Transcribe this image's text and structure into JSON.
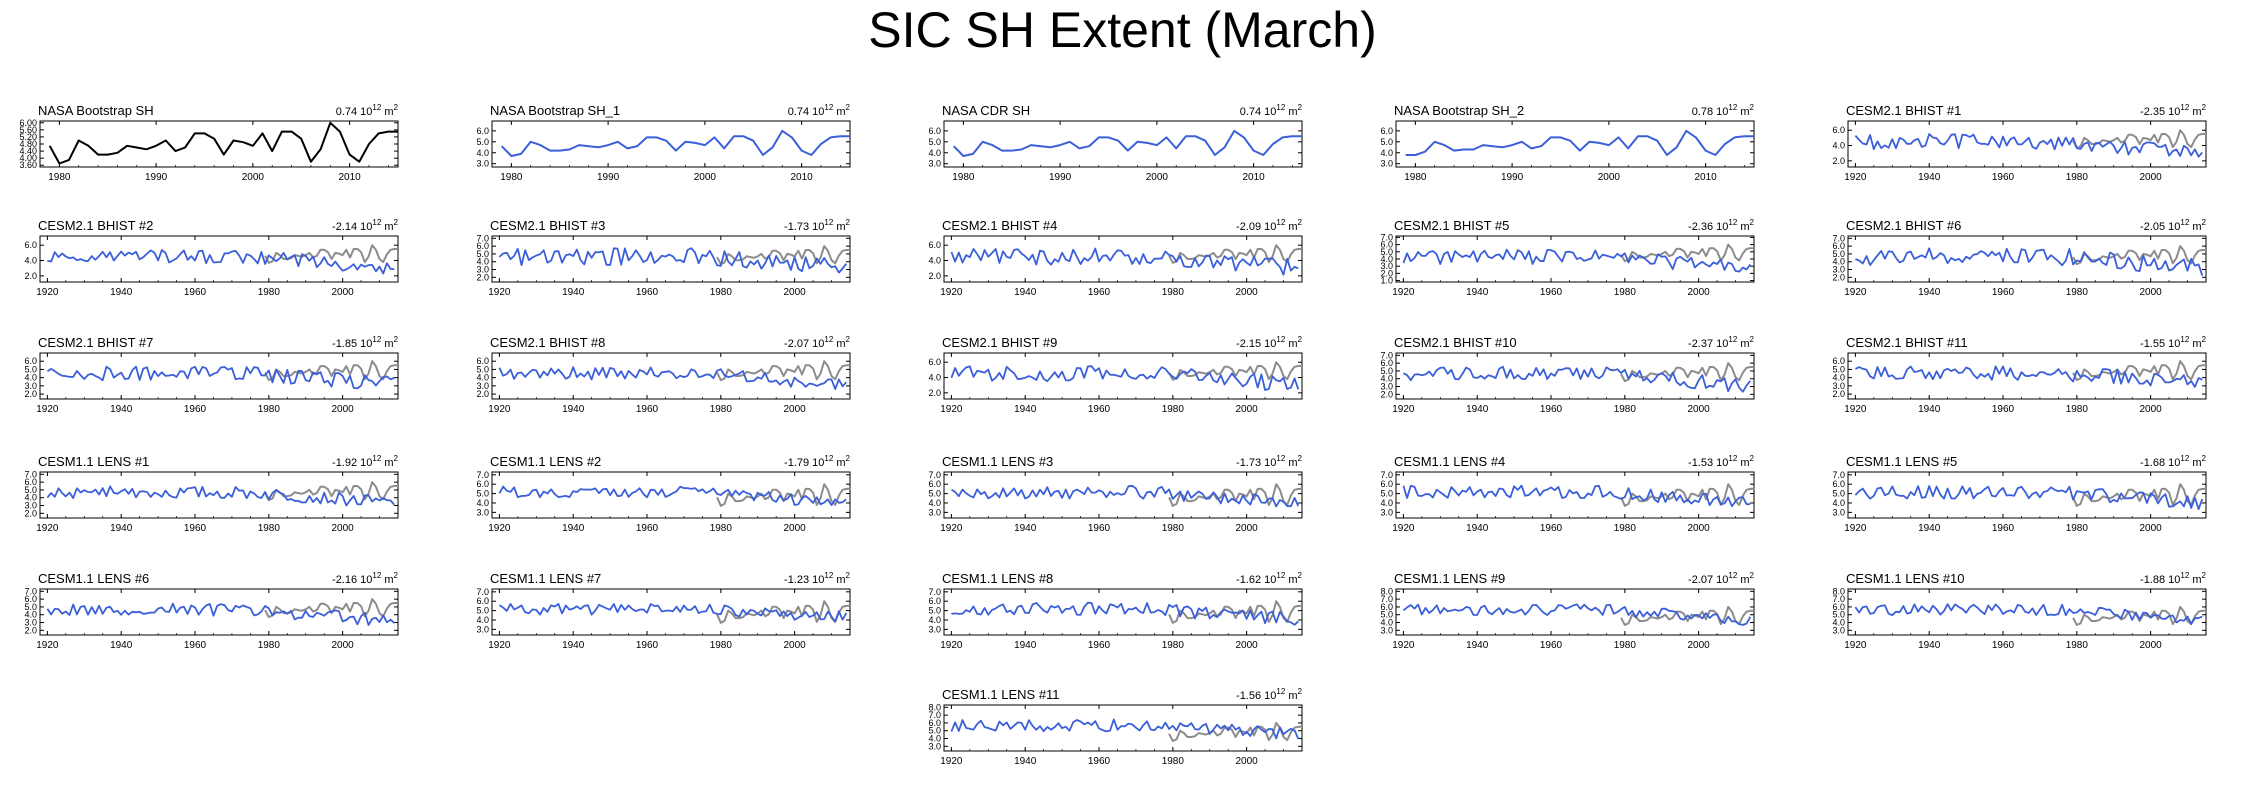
{
  "title": "SIC SH Extent (March)",
  "colors": {
    "observed": "#000000",
    "model": "#3a5fd9",
    "reference": "#8c8c8c"
  },
  "units": {
    "base": "10",
    "exp": "12",
    "unit": "m",
    "unit_exp": "2"
  },
  "chart_data": [
    {
      "type": "line",
      "title": "NASA Bootstrap SH",
      "trend": "0.74",
      "style": "obs",
      "xlim": [
        1978,
        2015
      ],
      "xticks": [
        1980,
        1990,
        2000,
        2010
      ],
      "ylim": [
        3.5,
        6.1
      ],
      "yticks": [
        "6.00",
        "5.60",
        "5.20",
        "4.80",
        "4.40",
        "4.00",
        "3.60"
      ],
      "ytick_values": [
        6.0,
        5.6,
        5.2,
        4.8,
        4.4,
        4.0,
        3.6
      ],
      "series": [
        {
          "x_start": 1979,
          "values": [
            4.7,
            3.7,
            3.9,
            5.0,
            4.7,
            4.2,
            4.2,
            4.3,
            4.7,
            4.6,
            4.5,
            4.7,
            5.0,
            4.4,
            4.6,
            5.4,
            5.4,
            5.1,
            4.2,
            5.0,
            4.9,
            4.7,
            5.4,
            4.4,
            5.5,
            5.5,
            5.1,
            3.8,
            4.5,
            6.0,
            5.5,
            4.2,
            3.8,
            4.8,
            5.4,
            5.5,
            5.5
          ]
        }
      ]
    },
    {
      "type": "line",
      "title": "NASA Bootstrap SH_1",
      "trend": "0.74",
      "style": "obs1",
      "xlim": [
        1978,
        2015
      ],
      "xticks": [
        1980,
        1990,
        2000,
        2010
      ],
      "ylim": [
        2.7,
        6.9
      ],
      "yticks": [
        "6.0",
        "5.0",
        "4.0",
        "3.0"
      ],
      "ytick_values": [
        6.0,
        5.0,
        4.0,
        3.0
      ],
      "series": [
        {
          "x_start": 1979,
          "values": [
            4.6,
            3.7,
            3.9,
            5.0,
            4.7,
            4.2,
            4.2,
            4.3,
            4.7,
            4.6,
            4.5,
            4.7,
            5.0,
            4.4,
            4.6,
            5.4,
            5.4,
            5.1,
            4.2,
            5.0,
            4.9,
            4.7,
            5.4,
            4.4,
            5.5,
            5.5,
            5.1,
            3.8,
            4.5,
            6.0,
            5.4,
            4.2,
            3.8,
            4.8,
            5.4,
            5.5,
            5.5
          ]
        }
      ]
    },
    {
      "type": "line",
      "title": "NASA CDR SH",
      "trend": "0.74",
      "style": "obs1",
      "xlim": [
        1978,
        2015
      ],
      "xticks": [
        1980,
        1990,
        2000,
        2010
      ],
      "ylim": [
        2.7,
        6.9
      ],
      "yticks": [
        "6.0",
        "5.0",
        "4.0",
        "3.0"
      ],
      "ytick_values": [
        6.0,
        5.0,
        4.0,
        3.0
      ],
      "series": [
        {
          "x_start": 1979,
          "values": [
            4.6,
            3.7,
            3.9,
            5.0,
            4.7,
            4.2,
            4.2,
            4.3,
            4.7,
            4.6,
            4.5,
            4.7,
            5.0,
            4.4,
            4.6,
            5.4,
            5.4,
            5.1,
            4.2,
            5.0,
            4.9,
            4.7,
            5.4,
            4.4,
            5.5,
            5.5,
            5.1,
            3.8,
            4.5,
            6.0,
            5.4,
            4.2,
            3.8,
            4.8,
            5.4,
            5.5,
            5.5
          ]
        }
      ]
    },
    {
      "type": "line",
      "title": "NASA Bootstrap SH_2",
      "trend": "0.78",
      "style": "obs1",
      "xlim": [
        1978,
        2015
      ],
      "xticks": [
        1980,
        1990,
        2000,
        2010
      ],
      "ylim": [
        2.7,
        6.9
      ],
      "yticks": [
        "6.0",
        "5.0",
        "4.0",
        "3.0"
      ],
      "ytick_values": [
        6.0,
        5.0,
        4.0,
        3.0
      ],
      "series": [
        {
          "x_start": 1979,
          "values": [
            3.8,
            3.8,
            4.1,
            5.0,
            4.7,
            4.2,
            4.3,
            4.3,
            4.7,
            4.6,
            4.5,
            4.7,
            5.0,
            4.4,
            4.6,
            5.4,
            5.4,
            5.1,
            4.2,
            5.0,
            4.9,
            4.7,
            5.4,
            4.4,
            5.5,
            5.5,
            5.1,
            3.8,
            4.5,
            6.0,
            5.4,
            4.2,
            3.8,
            4.8,
            5.4,
            5.5,
            5.5
          ]
        }
      ]
    },
    {
      "type": "line",
      "title": "CESM2.1 BHIST #1",
      "trend": "-2.35",
      "style": "model",
      "amp": 1.0,
      "xlim": [
        1918,
        2015
      ],
      "xticks": [
        1920,
        1940,
        1960,
        1980,
        2000
      ],
      "ylim": [
        1.2,
        7.2
      ],
      "yticks": [
        "6.0",
        "4.0",
        "2.0"
      ],
      "ytick_values": [
        6.0,
        4.0,
        2.0
      ],
      "series": [
        {
          "x_start": 1920,
          "values": []
        }
      ]
    },
    {
      "type": "line",
      "title": "CESM2.1 BHIST #2",
      "trend": "-2.14",
      "style": "model",
      "amp": 0.9,
      "xlim": [
        1918,
        2015
      ],
      "xticks": [
        1920,
        1940,
        1960,
        1980,
        2000
      ],
      "ylim": [
        1.2,
        7.2
      ],
      "yticks": [
        "6.0",
        "4.0",
        "2.0"
      ],
      "ytick_values": [
        6.0,
        4.0,
        2.0
      ],
      "series": [
        {
          "x_start": 1920,
          "values": []
        }
      ]
    },
    {
      "type": "line",
      "title": "CESM2.1 BHIST #3",
      "trend": "-1.73",
      "style": "model",
      "amp": 1.1,
      "xlim": [
        1918,
        2015
      ],
      "xticks": [
        1920,
        1940,
        1960,
        1980,
        2000
      ],
      "ylim": [
        1.4,
        7.3
      ],
      "yticks": [
        "7.0",
        "6.0",
        "5.0",
        "4.0",
        "3.0",
        "2.0"
      ],
      "ytick_values": [
        7.0,
        6.0,
        5.0,
        4.0,
        3.0,
        2.0
      ],
      "series": [
        {
          "x_start": 1920,
          "values": []
        }
      ]
    },
    {
      "type": "line",
      "title": "CESM2.1 BHIST #4",
      "trend": "-2.09",
      "style": "model",
      "amp": 1.1,
      "xlim": [
        1918,
        2015
      ],
      "xticks": [
        1920,
        1940,
        1960,
        1980,
        2000
      ],
      "ylim": [
        1.2,
        7.2
      ],
      "yticks": [
        "6.0",
        "4.0",
        "2.0"
      ],
      "ytick_values": [
        6.0,
        4.0,
        2.0
      ],
      "series": [
        {
          "x_start": 1920,
          "values": []
        }
      ]
    },
    {
      "type": "line",
      "title": "CESM2.1 BHIST #5",
      "trend": "-2.36",
      "style": "model",
      "amp": 1.0,
      "xlim": [
        1918,
        2015
      ],
      "xticks": [
        1920,
        1940,
        1960,
        1980,
        2000
      ],
      "ylim": [
        0.8,
        7.2
      ],
      "yticks": [
        "7.0",
        "6.0",
        "5.0",
        "4.0",
        "3.0",
        "2.0",
        "1.0"
      ],
      "ytick_values": [
        7.0,
        6.0,
        5.0,
        4.0,
        3.0,
        2.0,
        1.0
      ],
      "series": [
        {
          "x_start": 1920,
          "values": []
        }
      ]
    },
    {
      "type": "line",
      "title": "CESM2.1 BHIST #6",
      "trend": "-2.05",
      "style": "model",
      "amp": 1.1,
      "xlim": [
        1918,
        2015
      ],
      "xticks": [
        1920,
        1940,
        1960,
        1980,
        2000
      ],
      "ylim": [
        1.4,
        7.3
      ],
      "yticks": [
        "7.0",
        "6.0",
        "5.0",
        "4.0",
        "3.0",
        "2.0"
      ],
      "ytick_values": [
        7.0,
        6.0,
        5.0,
        4.0,
        3.0,
        2.0
      ],
      "series": [
        {
          "x_start": 1920,
          "values": []
        }
      ]
    },
    {
      "type": "line",
      "title": "CESM2.1 BHIST #7",
      "trend": "-1.85",
      "style": "model",
      "amp": 0.9,
      "xlim": [
        1918,
        2015
      ],
      "xticks": [
        1920,
        1940,
        1960,
        1980,
        2000
      ],
      "ylim": [
        1.4,
        7.0
      ],
      "yticks": [
        "6.0",
        "5.0",
        "4.0",
        "3.0",
        "2.0"
      ],
      "ytick_values": [
        6.0,
        5.0,
        4.0,
        3.0,
        2.0
      ],
      "series": [
        {
          "x_start": 1920,
          "values": []
        }
      ]
    },
    {
      "type": "line",
      "title": "CESM2.1 BHIST #8",
      "trend": "-2.07",
      "style": "model",
      "amp": 0.8,
      "xlim": [
        1918,
        2015
      ],
      "xticks": [
        1920,
        1940,
        1960,
        1980,
        2000
      ],
      "ylim": [
        1.4,
        7.0
      ],
      "yticks": [
        "6.0",
        "5.0",
        "4.0",
        "3.0",
        "2.0"
      ],
      "ytick_values": [
        6.0,
        5.0,
        4.0,
        3.0,
        2.0
      ],
      "series": [
        {
          "x_start": 1920,
          "values": []
        }
      ]
    },
    {
      "type": "line",
      "title": "CESM2.1 BHIST #9",
      "trend": "-2.15",
      "style": "model",
      "amp": 1.0,
      "xlim": [
        1918,
        2015
      ],
      "xticks": [
        1920,
        1940,
        1960,
        1980,
        2000
      ],
      "ylim": [
        1.2,
        7.2
      ],
      "yticks": [
        "6.0",
        "4.0",
        "2.0"
      ],
      "ytick_values": [
        6.0,
        4.0,
        2.0
      ],
      "series": [
        {
          "x_start": 1920,
          "values": []
        }
      ]
    },
    {
      "type": "line",
      "title": "CESM2.1 BHIST #10",
      "trend": "-2.37",
      "style": "model",
      "amp": 0.9,
      "xlim": [
        1918,
        2015
      ],
      "xticks": [
        1920,
        1940,
        1960,
        1980,
        2000
      ],
      "ylim": [
        1.4,
        7.3
      ],
      "yticks": [
        "7.0",
        "6.0",
        "5.0",
        "4.0",
        "3.0",
        "2.0"
      ],
      "ytick_values": [
        7.0,
        6.0,
        5.0,
        4.0,
        3.0,
        2.0
      ],
      "series": [
        {
          "x_start": 1920,
          "values": []
        }
      ]
    },
    {
      "type": "line",
      "title": "CESM2.1 BHIST #11",
      "trend": "-1.55",
      "style": "model",
      "amp": 0.9,
      "xlim": [
        1918,
        2015
      ],
      "xticks": [
        1920,
        1940,
        1960,
        1980,
        2000
      ],
      "ylim": [
        1.4,
        7.0
      ],
      "yticks": [
        "6.0",
        "5.0",
        "4.0",
        "3.0",
        "2.0"
      ],
      "ytick_values": [
        6.0,
        5.0,
        4.0,
        3.0,
        2.0
      ],
      "series": [
        {
          "x_start": 1920,
          "values": []
        }
      ]
    },
    {
      "type": "line",
      "title": "CESM1.1 LENS #1",
      "trend": "-1.92",
      "style": "model",
      "amp": 0.8,
      "xlim": [
        1918,
        2015
      ],
      "xticks": [
        1920,
        1940,
        1960,
        1980,
        2000
      ],
      "ylim": [
        1.4,
        7.3
      ],
      "yticks": [
        "7.0",
        "6.0",
        "5.0",
        "4.0",
        "3.0",
        "2.0"
      ],
      "ytick_values": [
        7.0,
        6.0,
        5.0,
        4.0,
        3.0,
        2.0
      ],
      "series": [
        {
          "x_start": 1920,
          "values": []
        }
      ]
    },
    {
      "type": "line",
      "title": "CESM1.1 LENS #2",
      "trend": "-1.79",
      "style": "model",
      "amp": 0.6,
      "xlim": [
        1918,
        2015
      ],
      "xticks": [
        1920,
        1940,
        1960,
        1980,
        2000
      ],
      "ylim": [
        2.4,
        7.3
      ],
      "yticks": [
        "7.0",
        "6.0",
        "5.0",
        "4.0",
        "3.0"
      ],
      "ytick_values": [
        7.0,
        6.0,
        5.0,
        4.0,
        3.0
      ],
      "series": [
        {
          "x_start": 1920,
          "values": []
        }
      ]
    },
    {
      "type": "line",
      "title": "CESM1.1 LENS #3",
      "trend": "-1.73",
      "style": "model",
      "amp": 0.7,
      "xlim": [
        1918,
        2015
      ],
      "xticks": [
        1920,
        1940,
        1960,
        1980,
        2000
      ],
      "ylim": [
        2.4,
        7.3
      ],
      "yticks": [
        "7.0",
        "6.0",
        "5.0",
        "4.0",
        "3.0"
      ],
      "ytick_values": [
        7.0,
        6.0,
        5.0,
        4.0,
        3.0
      ],
      "series": [
        {
          "x_start": 1920,
          "values": []
        }
      ]
    },
    {
      "type": "line",
      "title": "CESM1.1 LENS #4",
      "trend": "-1.53",
      "style": "model",
      "amp": 0.7,
      "xlim": [
        1918,
        2015
      ],
      "xticks": [
        1920,
        1940,
        1960,
        1980,
        2000
      ],
      "ylim": [
        2.4,
        7.3
      ],
      "yticks": [
        "7.0",
        "6.0",
        "5.0",
        "4.0",
        "3.0"
      ],
      "ytick_values": [
        7.0,
        6.0,
        5.0,
        4.0,
        3.0
      ],
      "series": [
        {
          "x_start": 1920,
          "values": []
        }
      ]
    },
    {
      "type": "line",
      "title": "CESM1.1 LENS #5",
      "trend": "-1.68",
      "style": "model",
      "amp": 0.7,
      "xlim": [
        1918,
        2015
      ],
      "xticks": [
        1920,
        1940,
        1960,
        1980,
        2000
      ],
      "ylim": [
        2.4,
        7.3
      ],
      "yticks": [
        "7.0",
        "6.0",
        "5.0",
        "4.0",
        "3.0"
      ],
      "ytick_values": [
        7.0,
        6.0,
        5.0,
        4.0,
        3.0
      ],
      "series": [
        {
          "x_start": 1920,
          "values": []
        }
      ]
    },
    {
      "type": "line",
      "title": "CESM1.1 LENS #6",
      "trend": "-2.16",
      "style": "model",
      "amp": 0.8,
      "xlim": [
        1918,
        2015
      ],
      "xticks": [
        1920,
        1940,
        1960,
        1980,
        2000
      ],
      "ylim": [
        1.4,
        7.3
      ],
      "yticks": [
        "7.0",
        "6.0",
        "5.0",
        "4.0",
        "3.0",
        "2.0"
      ],
      "ytick_values": [
        7.0,
        6.0,
        5.0,
        4.0,
        3.0,
        2.0
      ],
      "series": [
        {
          "x_start": 1920,
          "values": []
        }
      ]
    },
    {
      "type": "line",
      "title": "CESM1.1 LENS #7",
      "trend": "-1.23",
      "style": "model",
      "amp": 0.6,
      "xlim": [
        1918,
        2015
      ],
      "xticks": [
        1920,
        1940,
        1960,
        1980,
        2000
      ],
      "ylim": [
        2.4,
        7.3
      ],
      "yticks": [
        "7.0",
        "6.0",
        "5.0",
        "4.0",
        "3.0"
      ],
      "ytick_values": [
        7.0,
        6.0,
        5.0,
        4.0,
        3.0
      ],
      "series": [
        {
          "x_start": 1920,
          "values": []
        }
      ]
    },
    {
      "type": "line",
      "title": "CESM1.1 LENS #8",
      "trend": "-1.62",
      "style": "model",
      "amp": 0.7,
      "xlim": [
        1918,
        2015
      ],
      "xticks": [
        1920,
        1940,
        1960,
        1980,
        2000
      ],
      "ylim": [
        2.4,
        7.3
      ],
      "yticks": [
        "7.0",
        "6.0",
        "5.0",
        "4.0",
        "3.0"
      ],
      "ytick_values": [
        7.0,
        6.0,
        5.0,
        4.0,
        3.0
      ],
      "series": [
        {
          "x_start": 1920,
          "values": []
        }
      ]
    },
    {
      "type": "line",
      "title": "CESM1.1 LENS #9",
      "trend": "-2.07",
      "style": "model",
      "amp": 0.7,
      "xlim": [
        1918,
        2015
      ],
      "xticks": [
        1920,
        1940,
        1960,
        1980,
        2000
      ],
      "ylim": [
        2.4,
        8.3
      ],
      "yticks": [
        "8.0",
        "7.0",
        "6.0",
        "5.0",
        "4.0",
        "3.0"
      ],
      "ytick_values": [
        8.0,
        7.0,
        6.0,
        5.0,
        4.0,
        3.0
      ],
      "series": [
        {
          "x_start": 1920,
          "values": []
        }
      ]
    },
    {
      "type": "line",
      "title": "CESM1.1 LENS #10",
      "trend": "-1.88",
      "style": "model",
      "amp": 0.7,
      "xlim": [
        1918,
        2015
      ],
      "xticks": [
        1920,
        1940,
        1960,
        1980,
        2000
      ],
      "ylim": [
        2.4,
        8.3
      ],
      "yticks": [
        "8.0",
        "7.0",
        "6.0",
        "5.0",
        "4.0",
        "3.0"
      ],
      "ytick_values": [
        8.0,
        7.0,
        6.0,
        5.0,
        4.0,
        3.0
      ],
      "series": [
        {
          "x_start": 1920,
          "values": []
        }
      ]
    },
    {
      "type": "line",
      "title": "CESM1.1 LENS #11",
      "trend": "-1.56",
      "style": "model",
      "amp": 0.8,
      "xlim": [
        1918,
        2015
      ],
      "xticks": [
        1920,
        1940,
        1960,
        1980,
        2000
      ],
      "ylim": [
        2.4,
        8.3
      ],
      "yticks": [
        "8.0",
        "7.0",
        "6.0",
        "5.0",
        "4.0",
        "3.0"
      ],
      "ytick_values": [
        8.0,
        7.0,
        6.0,
        5.0,
        4.0,
        3.0
      ],
      "series": [
        {
          "x_start": 1920,
          "values": []
        }
      ]
    }
  ]
}
